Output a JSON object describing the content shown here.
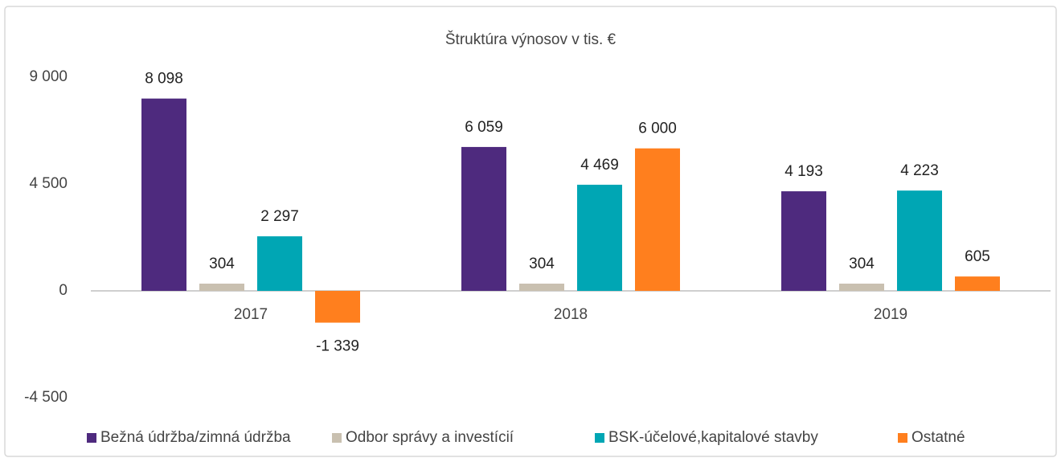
{
  "chart_data": {
    "type": "bar",
    "title": "Štruktúra výnosov v tis. €",
    "categories": [
      "2017",
      "2018",
      "2019"
    ],
    "series": [
      {
        "name": "Bežná údržba/zimná údržba",
        "color": "#4e2a7e",
        "values": [
          8098,
          6059,
          4193
        ],
        "value_labels": [
          "8 098",
          "6 059",
          "4 193"
        ]
      },
      {
        "name": "Odbor správy a investícií",
        "color": "#c9c0b0",
        "values": [
          304,
          304,
          304
        ],
        "value_labels": [
          "304",
          "304",
          "304"
        ]
      },
      {
        "name": "BSK-účelové,kapitalové stavby",
        "color": "#00a6b4",
        "values": [
          2297,
          4469,
          4223
        ],
        "value_labels": [
          "2 297",
          "4 469",
          "4 223"
        ]
      },
      {
        "name": "Ostatné",
        "color": "#ff7f1e",
        "values": [
          -1339,
          6000,
          605
        ],
        "value_labels": [
          "-1 339",
          "6 000",
          "605"
        ]
      }
    ],
    "ylim": [
      -4500,
      9000
    ],
    "yticks": [
      {
        "value": -4500,
        "label": "-4 500"
      },
      0,
      {
        "value": 4500,
        "label": "4 500"
      },
      {
        "value": 9000,
        "label": "9 000"
      }
    ],
    "grid": false,
    "legend": "bottom"
  }
}
